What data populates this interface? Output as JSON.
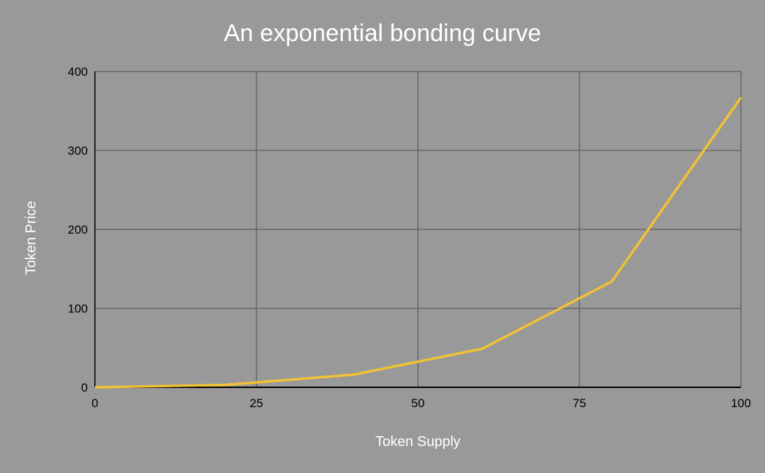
{
  "chart_data": {
    "type": "line",
    "title": "An exponential bonding curve",
    "xlabel": "Token Supply",
    "ylabel": "Token Price",
    "xlim": [
      0,
      100
    ],
    "ylim": [
      0,
      400
    ],
    "x_ticks": [
      "0",
      "25",
      "50",
      "75",
      "100"
    ],
    "y_ticks": [
      "0",
      "100",
      "200",
      "300",
      "400"
    ],
    "grid": true,
    "legend": "none",
    "background_color": "#999999",
    "series": [
      {
        "color": "#f1c232",
        "x": [
          0,
          20,
          40,
          60,
          80,
          100
        ],
        "y": [
          0,
          3,
          16,
          49,
          134,
          367
        ]
      }
    ]
  }
}
